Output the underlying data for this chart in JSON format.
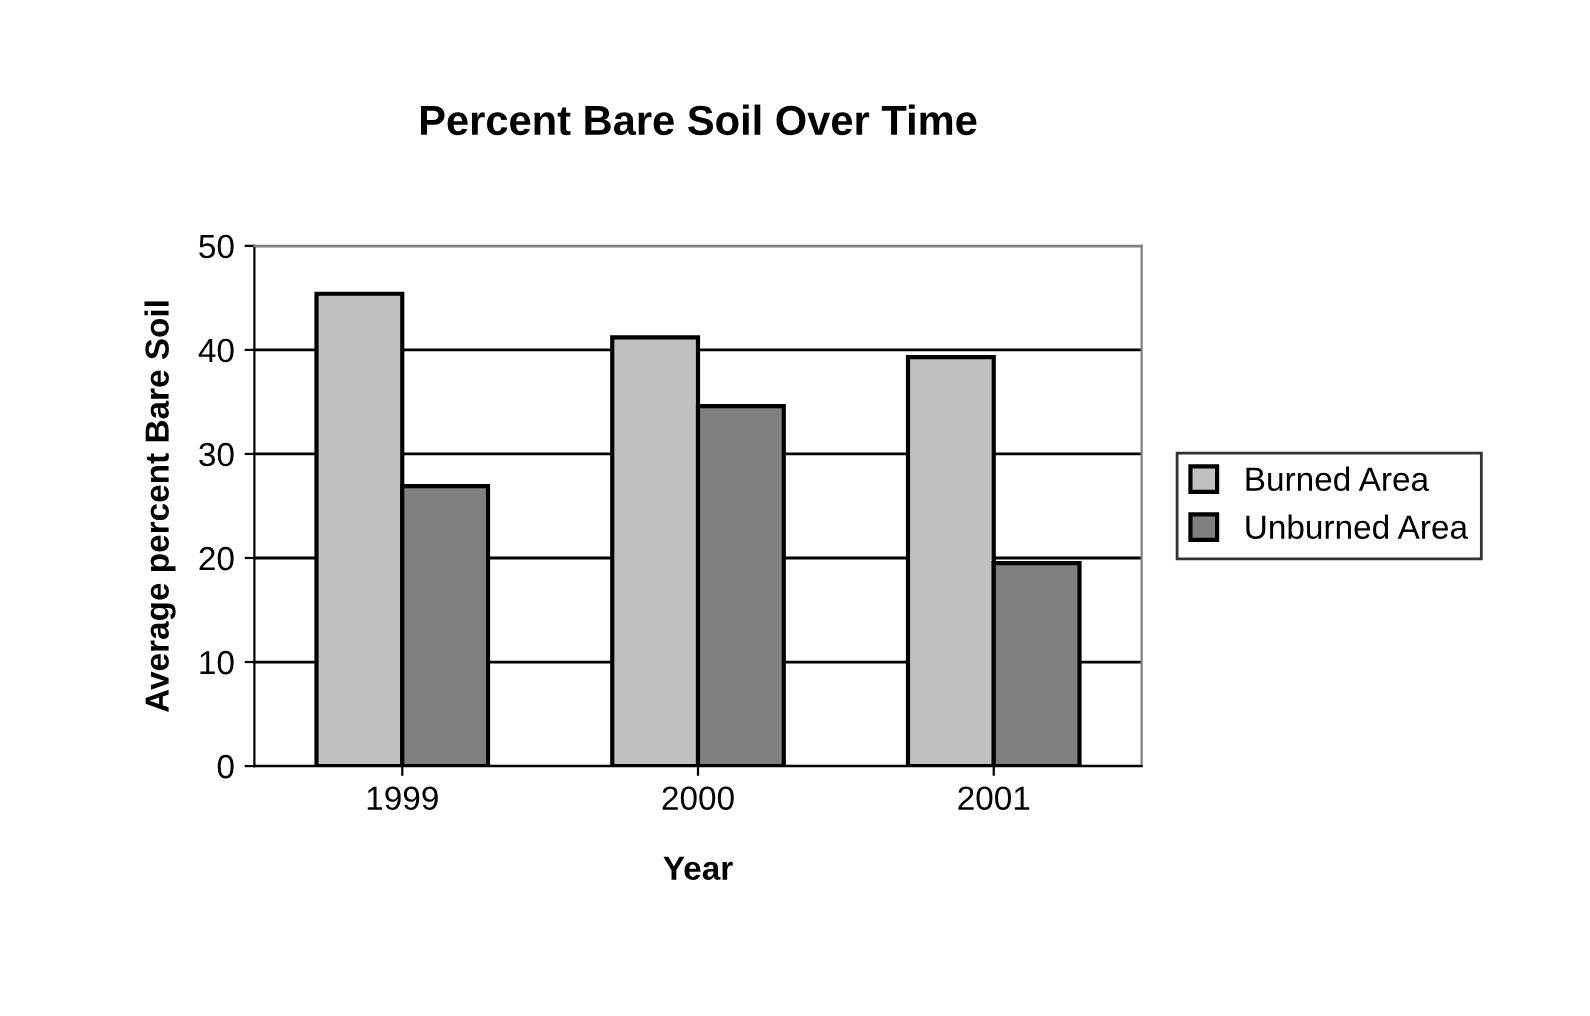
{
  "chart_data": {
    "type": "bar",
    "title": "Percent Bare Soil Over Time",
    "xlabel": "Year",
    "ylabel": "Average percent Bare Soil",
    "categories": [
      "1999",
      "2000",
      "2001"
    ],
    "series": [
      {
        "name": "Burned Area",
        "color": "#c0c0c0",
        "values": [
          45.4,
          41.2,
          39.3
        ]
      },
      {
        "name": "Unburned Area",
        "color": "#808080",
        "values": [
          26.9,
          34.6,
          19.5
        ]
      }
    ],
    "ylim": [
      0,
      50
    ],
    "yticks": [
      0,
      10,
      20,
      30,
      40,
      50
    ],
    "grid": "y",
    "legend": "right"
  }
}
